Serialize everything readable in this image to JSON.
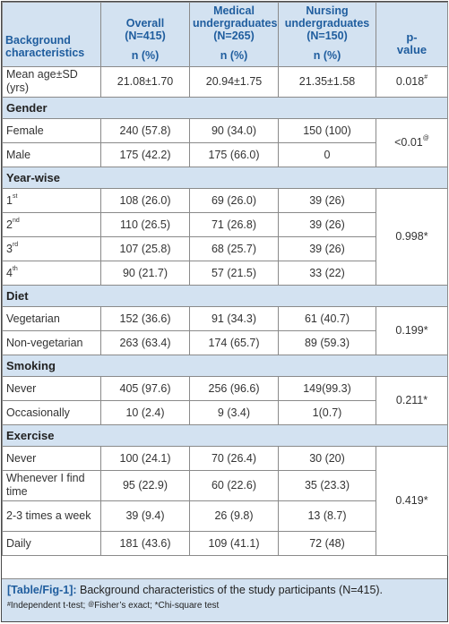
{
  "header": {
    "background_characteristics": "Background characteristics",
    "overall": "Overall",
    "overall_n": "(N=415)",
    "medical": "Medical",
    "medical_sub": "undergraduates",
    "medical_n": "(N=265)",
    "nursing": "Nursing",
    "nursing_sub": "undergraduates",
    "nursing_n": "(N=150)",
    "p_value_1": "p-",
    "p_value_2": "value",
    "n_pct": "n (%)"
  },
  "age": {
    "label_1": "Mean age±SD",
    "label_2": "(yrs)",
    "overall": "21.08±1.70",
    "medical": "20.94±1.75",
    "nursing": "21.35±1.58",
    "p": "0.018",
    "p_sup": "#"
  },
  "gender": {
    "title": "Gender",
    "rows": [
      {
        "label": "Female",
        "overall": "240 (57.8)",
        "medical": "90 (34.0)",
        "nursing": "150 (100)"
      },
      {
        "label": "Male",
        "overall": "175 (42.2)",
        "medical": "175 (66.0)",
        "nursing": "0"
      }
    ],
    "p": "<0.01",
    "p_sup": "@"
  },
  "year": {
    "title": "Year-wise",
    "rows": [
      {
        "label": "1",
        "sup": "st",
        "overall": "108 (26.0)",
        "medical": "69 (26.0)",
        "nursing": "39 (26)"
      },
      {
        "label": "2",
        "sup": "nd",
        "overall": "110 (26.5)",
        "medical": "71 (26.8)",
        "nursing": "39 (26)"
      },
      {
        "label": "3",
        "sup": "rd",
        "overall": "107 (25.8)",
        "medical": "68 (25.7)",
        "nursing": "39 (26)"
      },
      {
        "label": "4",
        "sup": "th",
        "overall": "90 (21.7)",
        "medical": "57 (21.5)",
        "nursing": "33 (22)"
      }
    ],
    "p": "0.998*"
  },
  "diet": {
    "title": "Diet",
    "rows": [
      {
        "label": "Vegetarian",
        "overall": "152 (36.6)",
        "medical": "91 (34.3)",
        "nursing": "61 (40.7)"
      },
      {
        "label": "Non-vegetarian",
        "overall": "263 (63.4)",
        "medical": "174 (65.7)",
        "nursing": "89 (59.3)"
      }
    ],
    "p": "0.199*"
  },
  "smoking": {
    "title": "Smoking",
    "rows": [
      {
        "label": "Never",
        "overall": "405 (97.6)",
        "medical": "256 (96.6)",
        "nursing": "149(99.3)"
      },
      {
        "label": "Occasionally",
        "overall": "10 (2.4)",
        "medical": "9 (3.4)",
        "nursing": "1(0.7)"
      }
    ],
    "p": "0.211*"
  },
  "exercise": {
    "title": "Exercise",
    "rows": [
      {
        "label": "Never",
        "overall": "100 (24.1)",
        "medical": "70 (26.4)",
        "nursing": "30 (20)"
      },
      {
        "label": "Whenever I find time",
        "overall": "95 (22.9)",
        "medical": "60 (22.6)",
        "nursing": "35 (23.3)"
      },
      {
        "label": "2-3 times a week",
        "overall": "39 (9.4)",
        "medical": "26 (9.8)",
        "nursing": "13 (8.7)"
      },
      {
        "label": "Daily",
        "overall": "181 (43.6)",
        "medical": "109 (41.1)",
        "nursing": "72 (48)"
      }
    ],
    "p": "0.419*"
  },
  "caption": {
    "label": "[Table/Fig-1]:",
    "text": " Background characteristics of the study participants (N=415).",
    "note_1_sym": "#",
    "note_1": "Independent t-test; ",
    "note_2_sym": "@",
    "note_2": "Fisher’s exact; ",
    "note_3": "*Chi-square test"
  }
}
